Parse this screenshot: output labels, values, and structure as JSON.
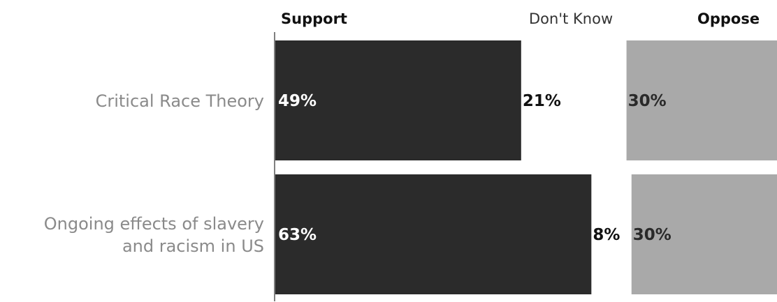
{
  "chart_data": {
    "type": "bar",
    "stacked": true,
    "orientation": "horizontal",
    "categories": [
      "Critical Race Theory",
      "Ongoing effects of slavery and racism in US"
    ],
    "category_lines": [
      [
        "Critical Race Theory"
      ],
      [
        "Ongoing effects of slavery",
        "and racism in US"
      ]
    ],
    "series": [
      {
        "name": "Support",
        "values": [
          49,
          63
        ],
        "labels": [
          "49%",
          "63%"
        ],
        "color": "#2b2b2b",
        "label_color": "#ffffff"
      },
      {
        "name": "Don't Know",
        "values": [
          21,
          8
        ],
        "labels": [
          "21%",
          "8%"
        ],
        "color": "#ffffff",
        "label_color": "#111111"
      },
      {
        "name": "Oppose",
        "values": [
          30,
          30
        ],
        "labels": [
          "30%",
          "30%"
        ],
        "color": "#a9a9a9",
        "label_color": "#2a2a2a"
      }
    ],
    "xlim": [
      0,
      100
    ],
    "grid": false,
    "legend": "top"
  }
}
